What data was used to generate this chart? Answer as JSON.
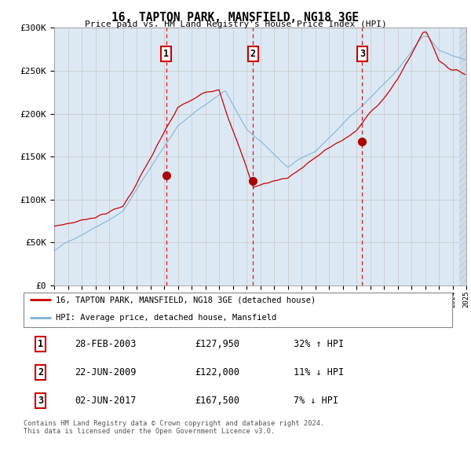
{
  "title": "16, TAPTON PARK, MANSFIELD, NG18 3GE",
  "subtitle": "Price paid vs. HM Land Registry's House Price Index (HPI)",
  "ylim": [
    0,
    300000
  ],
  "yticks": [
    0,
    50000,
    100000,
    150000,
    200000,
    250000,
    300000
  ],
  "ytick_labels": [
    "£0",
    "£50K",
    "£100K",
    "£150K",
    "£200K",
    "£250K",
    "£300K"
  ],
  "hpi_color": "#7bafd4",
  "price_color": "#cc0000",
  "marker_color": "#aa0000",
  "grid_color": "#cccccc",
  "bg_color": "#dce9f5",
  "hatch_color": "#c0d0e0",
  "purchase_dates": [
    2003.15,
    2009.47,
    2017.42
  ],
  "purchase_prices": [
    127950,
    122000,
    167500
  ],
  "purchase_labels": [
    "1",
    "2",
    "3"
  ],
  "legend_line_label": "16, TAPTON PARK, MANSFIELD, NG18 3GE (detached house)",
  "legend_hpi_label": "HPI: Average price, detached house, Mansfield",
  "table_rows": [
    [
      "1",
      "28-FEB-2003",
      "£127,950",
      "32% ↑ HPI"
    ],
    [
      "2",
      "22-JUN-2009",
      "£122,000",
      "11% ↓ HPI"
    ],
    [
      "3",
      "02-JUN-2017",
      "£167,500",
      "7% ↓ HPI"
    ]
  ],
  "footer": "Contains HM Land Registry data © Crown copyright and database right 2024.\nThis data is licensed under the Open Government Licence v3.0.",
  "xmin": 1995,
  "xmax": 2025,
  "hpi_seed": 42,
  "price_seed": 123
}
